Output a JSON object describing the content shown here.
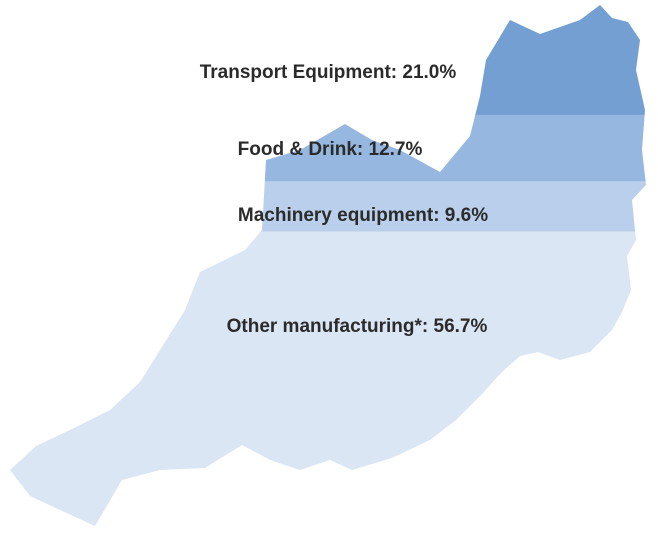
{
  "chart_data": {
    "type": "pictogram",
    "values": [
      21.0,
      12.7,
      9.6,
      56.7
    ],
    "value_labels": [
      "Transport Equipment: 21.0%",
      "Food & Drink: 12.7%",
      "Machinery equipment: 9.6%",
      "Other manufacturing*: 56.7%"
    ],
    "colors": [
      "#739fd3",
      "#96b7df",
      "#b9cfeb",
      "#dbe6f4"
    ]
  }
}
